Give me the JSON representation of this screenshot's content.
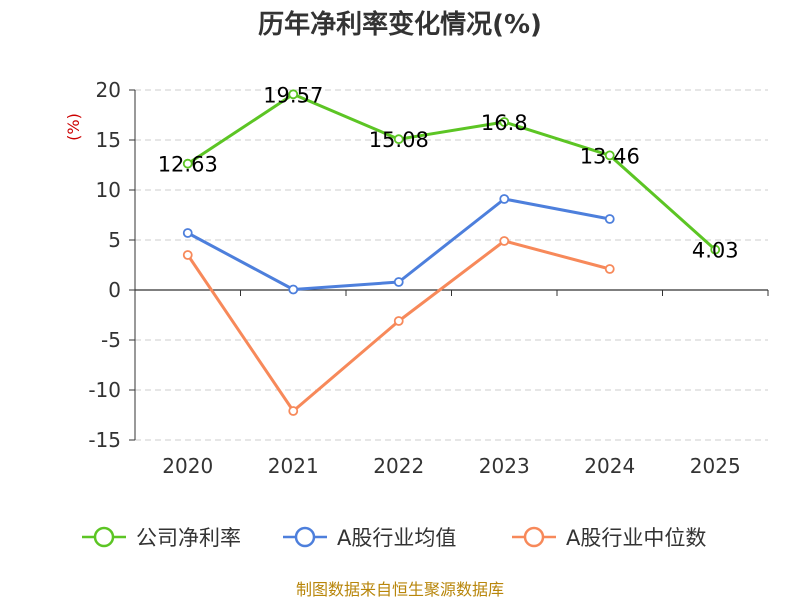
{
  "chart_data": {
    "type": "line",
    "title": "历年净利率变化情况(%)",
    "ylabel": "(%)",
    "xlabel": "",
    "categories": [
      "2020",
      "2021",
      "2022",
      "2023",
      "2024",
      "2025"
    ],
    "ylim": [
      -15,
      20
    ],
    "yticks": [
      20,
      15,
      10,
      5,
      0,
      -5,
      -10,
      -15
    ],
    "grid": true,
    "legend_position": "bottom",
    "series": [
      {
        "name": "公司净利率",
        "color": "#5cc524",
        "values": [
          12.63,
          19.57,
          15.08,
          16.8,
          13.46,
          4.03
        ],
        "labels": [
          "12.63",
          "19.57",
          "15.08",
          "16.8",
          "13.46",
          "4.03"
        ]
      },
      {
        "name": "A股行业均值",
        "color": "#4d7fdc",
        "values": [
          5.7,
          0.05,
          0.8,
          9.1,
          7.1,
          null
        ]
      },
      {
        "name": "A股行业中位数",
        "color": "#f7895a",
        "values": [
          3.5,
          -12.1,
          -3.1,
          4.9,
          2.1,
          null
        ]
      }
    ],
    "source": "制图数据来自恒生聚源数据库",
    "colors": {
      "unit": "#cc0000",
      "source": "#b8860b",
      "grid": "#cccccc",
      "axis": "#333333"
    }
  }
}
